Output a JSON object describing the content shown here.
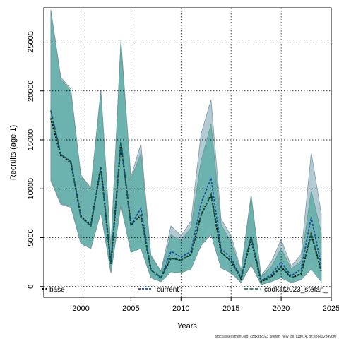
{
  "chart_data": {
    "type": "line",
    "xlabel": "Years",
    "ylabel": "Recruits (age 1)",
    "xlim": [
      1996.3,
      2025.0
    ],
    "ylim": [
      -1100,
      28500
    ],
    "x_ticks": [
      2000,
      2005,
      2010,
      2015,
      2020,
      2025
    ],
    "x_tick_labels": [
      "2000",
      "2005",
      "2010",
      "2015",
      "2020",
      "2025"
    ],
    "y_ticks": [
      0,
      5000,
      10000,
      15000,
      20000,
      25000
    ],
    "y_tick_labels": [
      "0",
      "5000",
      "10000",
      "15000",
      "20000",
      "25000"
    ],
    "grid": true,
    "legend_position": "bottom",
    "x": [
      1997,
      1998,
      1999,
      2000,
      2001,
      2002,
      2003,
      2004,
      2005,
      2006,
      2007,
      2008,
      2009,
      2010,
      2011,
      2012,
      2013,
      2014,
      2015,
      2016,
      2017,
      2018,
      2019,
      2020,
      2021,
      2022,
      2023,
      2024
    ],
    "series": [
      {
        "name": "base",
        "color": "#000000",
        "values": [
          17200,
          13400,
          12700,
          7200,
          6300,
          12200,
          2300,
          14700,
          6300,
          7300,
          1700,
          900,
          2900,
          2700,
          3300,
          7300,
          9400,
          3500,
          2600,
          800,
          4900,
          500,
          1000,
          2000,
          900,
          1300,
          5400,
          1600
        ],
        "lower": [
          10800,
          8400,
          8100,
          4400,
          3900,
          7600,
          1400,
          8300,
          3500,
          3900,
          900,
          500,
          1500,
          1400,
          1800,
          4200,
          5300,
          1900,
          1400,
          400,
          2200,
          200,
          500,
          900,
          400,
          700,
          1800,
          500
        ],
        "upper": [
          27400,
          21000,
          19700,
          11100,
          9800,
          19500,
          3900,
          24500,
          10700,
          13600,
          3000,
          1500,
          5300,
          4700,
          6000,
          12800,
          16600,
          6300,
          4600,
          1500,
          9000,
          900,
          2000,
          3900,
          1800,
          2600,
          9800,
          5500
        ]
      },
      {
        "name": "current",
        "color": "#1f4f9a",
        "values": [
          18000,
          13500,
          12800,
          7100,
          6200,
          12200,
          2300,
          14800,
          6300,
          8000,
          1700,
          900,
          3600,
          3000,
          3600,
          8500,
          11100,
          3900,
          2900,
          900,
          5100,
          600,
          1200,
          2500,
          1100,
          1800,
          7100,
          2200
        ],
        "lower": [
          11100,
          8500,
          8300,
          4400,
          3900,
          7600,
          1400,
          8400,
          3600,
          4400,
          900,
          500,
          1900,
          1600,
          2000,
          5000,
          6400,
          2200,
          1600,
          500,
          2400,
          300,
          600,
          1200,
          500,
          900,
          2600,
          800
        ],
        "upper": [
          28300,
          21400,
          20200,
          11400,
          10100,
          20100,
          4100,
          25200,
          11200,
          14600,
          3200,
          1600,
          6200,
          5200,
          6700,
          15600,
          19100,
          6900,
          5200,
          1700,
          9400,
          1100,
          2500,
          4800,
          2100,
          3300,
          13700,
          7500
        ]
      },
      {
        "name": "codkat2023_stefan_",
        "color": "#0d5c42",
        "values": [
          18000,
          13500,
          12800,
          7100,
          6200,
          12200,
          2300,
          14800,
          6300,
          7300,
          1700,
          900,
          2900,
          2700,
          3300,
          7300,
          9400,
          3500,
          2600,
          800,
          5100,
          600,
          1000,
          2000,
          900,
          1300,
          5400,
          1600
        ],
        "lower": [
          11000,
          8500,
          8200,
          4400,
          3900,
          7600,
          1400,
          8400,
          3500,
          3900,
          900,
          500,
          1500,
          1400,
          1800,
          4200,
          5300,
          1900,
          1400,
          400,
          2300,
          200,
          500,
          900,
          400,
          700,
          1800,
          500
        ],
        "upper": [
          28200,
          21200,
          20000,
          11300,
          10000,
          20000,
          4000,
          25000,
          11000,
          13600,
          3100,
          1500,
          5300,
          4700,
          6000,
          12800,
          16600,
          6300,
          4600,
          1500,
          9200,
          1000,
          2000,
          3900,
          1800,
          2600,
          9800,
          5500
        ]
      }
    ]
  },
  "legend": {
    "items": [
      "base",
      "current",
      "codkat2023_stefan_"
    ]
  },
  "footer": "stockassessment.org, codkat2023_stefan_new_all, r18014, git:e36ea2b496f0"
}
